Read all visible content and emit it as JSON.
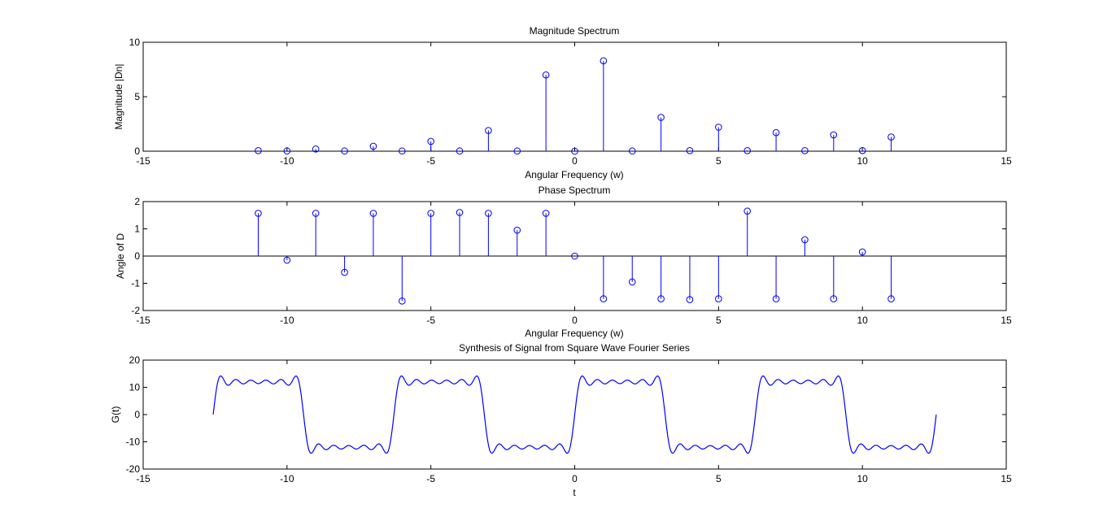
{
  "window": {
    "background": "#ffffff"
  },
  "colors": {
    "series": "#0000ff",
    "axes": "#000000"
  },
  "chart_data": [
    {
      "type": "stem",
      "title": "Magnitude Spectrum",
      "xlabel": "Angular Frequency (w)",
      "ylabel": "Magnitude |Dn|",
      "xlim": [
        -15,
        15
      ],
      "ylim": [
        0,
        10
      ],
      "xticks": [
        -15,
        -10,
        -5,
        0,
        5,
        10,
        15
      ],
      "yticks": [
        0,
        5,
        10
      ],
      "grid": false,
      "x": [
        -11,
        -10,
        -9,
        -8,
        -7,
        -6,
        -5,
        -4,
        -3,
        -2,
        -1,
        0,
        1,
        2,
        3,
        4,
        5,
        6,
        7,
        8,
        9,
        10,
        11
      ],
      "values": [
        0.05,
        0.02,
        0.2,
        0.02,
        0.45,
        0.02,
        0.9,
        0.02,
        1.9,
        0.02,
        7.0,
        0.0,
        8.3,
        0.02,
        3.1,
        0.05,
        2.2,
        0.05,
        1.7,
        0.05,
        1.5,
        0.05,
        1.3
      ]
    },
    {
      "type": "stem",
      "title": "Phase Spectrum",
      "xlabel": "Angular Frequency (w)",
      "ylabel": "Angle of D",
      "xlim": [
        -15,
        15
      ],
      "ylim": [
        -2,
        2
      ],
      "xticks": [
        -15,
        -10,
        -5,
        0,
        5,
        10,
        15
      ],
      "yticks": [
        -2,
        -1,
        0,
        1,
        2
      ],
      "grid": false,
      "x": [
        -11,
        -10,
        -9,
        -8,
        -7,
        -6,
        -5,
        -4,
        -3,
        -2,
        -1,
        0,
        1,
        2,
        3,
        4,
        5,
        6,
        7,
        8,
        9,
        10,
        11
      ],
      "values": [
        1.57,
        -0.15,
        1.57,
        -0.6,
        1.57,
        -1.65,
        1.57,
        1.6,
        1.57,
        0.95,
        1.57,
        0.0,
        -1.57,
        -0.95,
        -1.57,
        -1.6,
        -1.57,
        1.65,
        -1.57,
        0.6,
        -1.57,
        0.15,
        -1.57
      ]
    },
    {
      "type": "line",
      "title": "Synthesis of Signal from Square Wave Fourier Series",
      "xlabel": "t",
      "ylabel": "G(t)",
      "xlim": [
        -15,
        15
      ],
      "ylim": [
        -20,
        20
      ],
      "xticks": [
        -15,
        -10,
        -5,
        0,
        5,
        10,
        15
      ],
      "yticks": [
        -20,
        -10,
        0,
        10,
        20
      ],
      "grid": false,
      "t_range": [
        -12.566,
        12.566
      ],
      "square_wave_period": 6.2832,
      "amplitude": 12,
      "harmonics": [
        1,
        3,
        5,
        7,
        9,
        11
      ]
    }
  ]
}
